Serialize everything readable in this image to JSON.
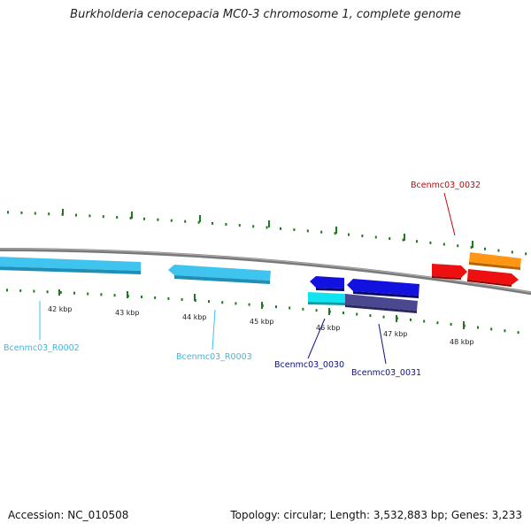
{
  "title": "Burkholderia cenocepacia MC0-3 chromosome 1, complete genome",
  "footer": {
    "accession": "Accession: NC_010508",
    "topology": "Topology: circular; Length: 3,532,883 bp; Genes: 3,233"
  },
  "colors": {
    "backbone": "#808080",
    "ticks": "#1e7a1e",
    "rrna": "#3fc3ef",
    "cds_reverse": "#1010d8",
    "cds_forward": "#ee1010",
    "cyan": "#11e4ee",
    "slate": "#4b4890",
    "orange": "#ff9616",
    "label_rrna": "#3ab8df",
    "label_blue": "#10108a",
    "label_red": "#cc0000"
  },
  "ticks": [
    {
      "label": "42 kbp"
    },
    {
      "label": "43 kbp"
    },
    {
      "label": "44 kbp"
    },
    {
      "label": "45 kbp"
    },
    {
      "label": "46 kbp"
    },
    {
      "label": "47 kbp"
    },
    {
      "label": "48 kbp"
    }
  ],
  "genes": [
    {
      "label": "Bcenmc03_R0002",
      "color": "label_rrna"
    },
    {
      "label": "Bcenmc03_R0003",
      "color": "label_rrna"
    },
    {
      "label": "Bcenmc03_0030",
      "color": "label_blue"
    },
    {
      "label": "Bcenmc03_0031",
      "color": "label_blue"
    },
    {
      "label": "Bcenmc03_0032",
      "color": "label_red"
    }
  ]
}
